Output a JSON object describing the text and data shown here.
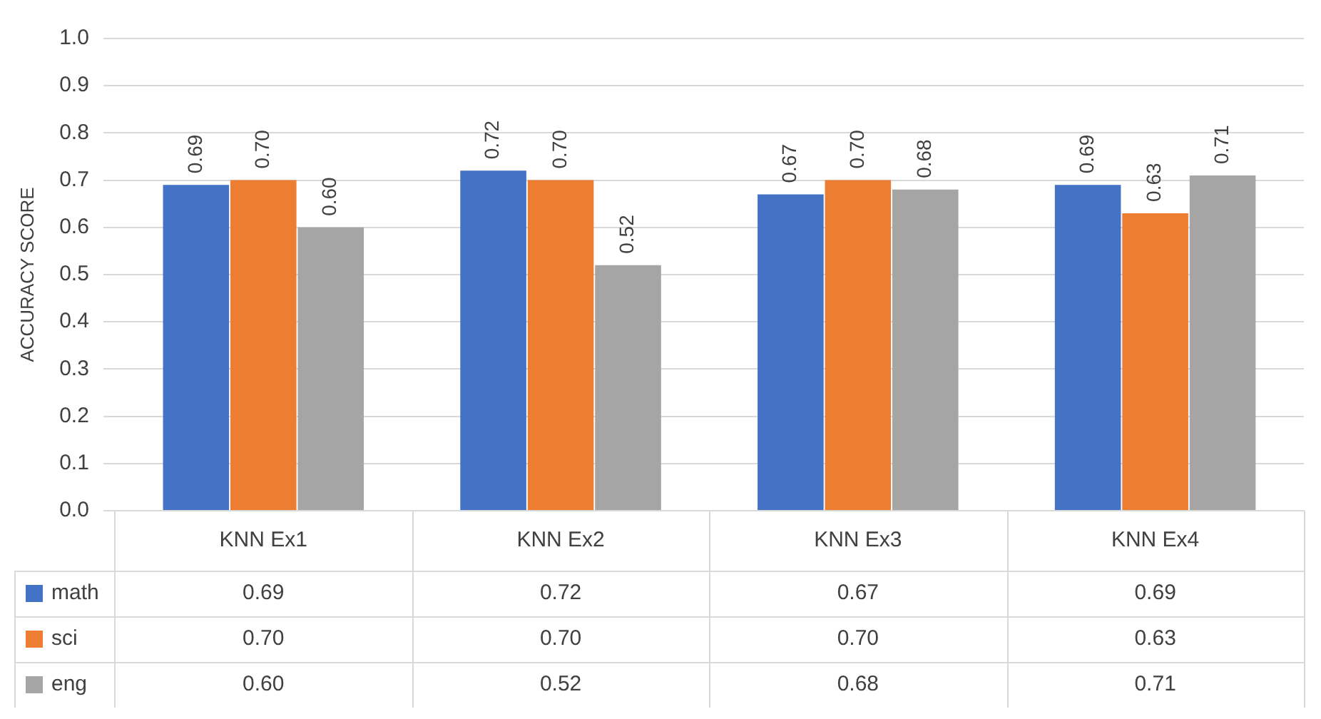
{
  "chart_data": {
    "type": "bar",
    "ylabel": "ACCURACY SCORE",
    "categories": [
      "KNN Ex1",
      "KNN Ex2",
      "KNN Ex3",
      "KNN Ex4"
    ],
    "series": [
      {
        "name": "math",
        "color": "#4472c4",
        "values": [
          0.69,
          0.72,
          0.67,
          0.69
        ],
        "value_labels": [
          "0.69",
          "0.72",
          "0.67",
          "0.69"
        ]
      },
      {
        "name": "sci",
        "color": "#ed7d31",
        "values": [
          0.7,
          0.7,
          0.7,
          0.63
        ],
        "value_labels": [
          "0.70",
          "0.70",
          "0.70",
          "0.63"
        ]
      },
      {
        "name": "eng",
        "color": "#a5a5a5",
        "values": [
          0.6,
          0.52,
          0.68,
          0.71
        ],
        "value_labels": [
          "0.60",
          "0.52",
          "0.68",
          "0.71"
        ]
      }
    ],
    "ylim": [
      0,
      1
    ],
    "yticks": [
      {
        "value": 0,
        "label": "0.0"
      },
      0.1,
      0.2,
      0.3,
      0.4,
      0.5,
      0.6,
      0.7,
      0.8,
      0.9,
      {
        "value": 1,
        "label": "1.0"
      }
    ],
    "grid": "y",
    "legend": "bottom"
  }
}
